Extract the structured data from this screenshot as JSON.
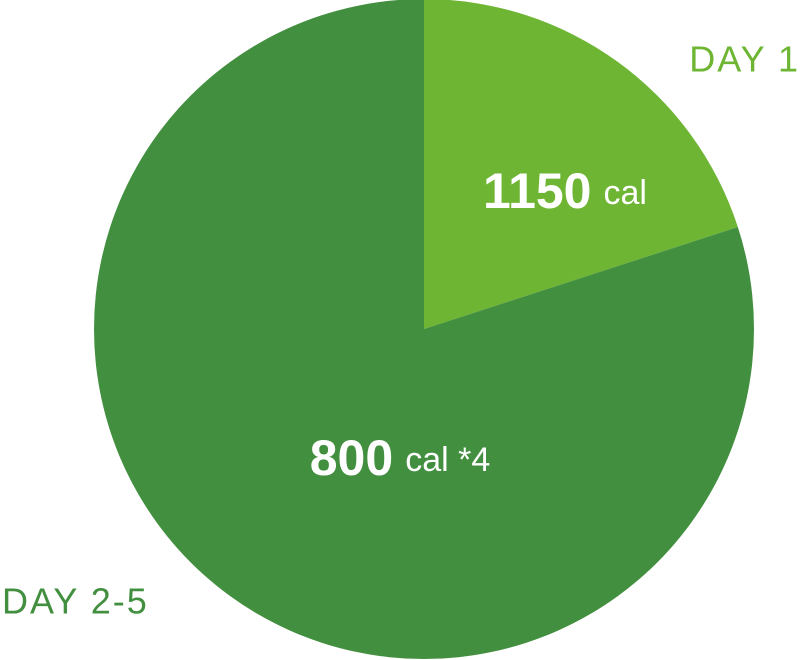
{
  "chart_data": {
    "type": "pie",
    "categories": [
      "DAY 1",
      "DAY 2-5"
    ],
    "days": [
      1,
      4
    ],
    "values": [
      1150,
      800
    ],
    "unit_labels": [
      "cal",
      "cal *4"
    ],
    "colors": [
      "#6db533",
      "#428f3f"
    ]
  }
}
